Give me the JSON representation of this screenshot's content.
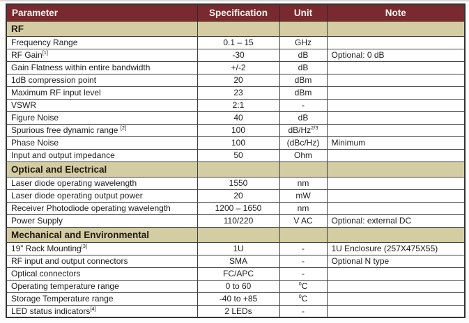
{
  "page": {
    "description": "Product specification table",
    "colors": {
      "header_bg": "#7a2a2e",
      "header_text": "#f8f3f2",
      "section_bg": "#d4cda4",
      "border": "#404040",
      "body_bg": "#fdfdfd"
    }
  },
  "table": {
    "columns": [
      "Parameter",
      "Specification",
      "Unit",
      "Note"
    ],
    "rows": [
      {
        "section": "RF"
      },
      {
        "param": "Frequency Range",
        "spec": "0.1 – 15",
        "unit": "GHz",
        "note": ""
      },
      {
        "param": "RF Gain",
        "param_sup": "[1]",
        "spec": "-30",
        "unit": "dB",
        "note": "Optional: 0 dB"
      },
      {
        "param": "Gain Flatness within entire bandwidth",
        "spec": "+/-2",
        "unit": "dB",
        "note": ""
      },
      {
        "param": "1dB compression point",
        "spec": "20",
        "unit": "dBm",
        "note": ""
      },
      {
        "param": "Maximum RF input level",
        "spec": "23",
        "unit": "dBm",
        "note": ""
      },
      {
        "param": "VSWR",
        "spec": "2:1",
        "unit": "-",
        "note": ""
      },
      {
        "param": "Figure Noise",
        "spec": "40",
        "unit": "dB",
        "note": ""
      },
      {
        "param": "Spurious free dynamic range ",
        "param_sup": "[2]",
        "spec": "100",
        "unit": "dB/Hz",
        "unit_sup": "2/3",
        "note": ""
      },
      {
        "param": "Phase Noise",
        "spec": "100",
        "unit": "(dBc/Hz)",
        "note": "Minimum"
      },
      {
        "param": "Input and output impedance",
        "spec": "50",
        "unit": "Ohm",
        "note": ""
      },
      {
        "section": "Optical and Electrical"
      },
      {
        "param": "Laser diode operating wavelength",
        "spec": "1550",
        "unit": "nm",
        "note": ""
      },
      {
        "param": "Laser diode operating output power",
        "spec": "20",
        "unit": "mW",
        "note": ""
      },
      {
        "param": "Receiver Photodiode operating wavelength",
        "spec": "1200 – 1650",
        "unit": "nm",
        "note": ""
      },
      {
        "param": "Power Supply",
        "spec": "110/220",
        "unit": "V AC",
        "note": "Optional: external DC"
      },
      {
        "section": "Mechanical and Environmental"
      },
      {
        "param": "19” Rack Mounting",
        "param_sup": "[3]",
        "spec": "1U",
        "unit": "-",
        "note": "1U Enclosure (257X475X55)"
      },
      {
        "param": "RF input and output connectors",
        "spec": "SMA",
        "unit": "-",
        "note": "Optional N type"
      },
      {
        "param": "Optical connectors",
        "spec": "FC/APC",
        "unit": "-",
        "note": ""
      },
      {
        "param": "Operating temperature range",
        "spec": "0 to 60",
        "unit_presup": "0",
        "unit": "C",
        "note": ""
      },
      {
        "param": "Storage Temperature range",
        "spec": "-40 to +85",
        "unit_presup": "0",
        "unit": "C",
        "note": ""
      },
      {
        "param": "LED status indicators",
        "param_sup": "[4]",
        "spec": "2 LEDs",
        "unit": "-",
        "note": ""
      }
    ]
  }
}
